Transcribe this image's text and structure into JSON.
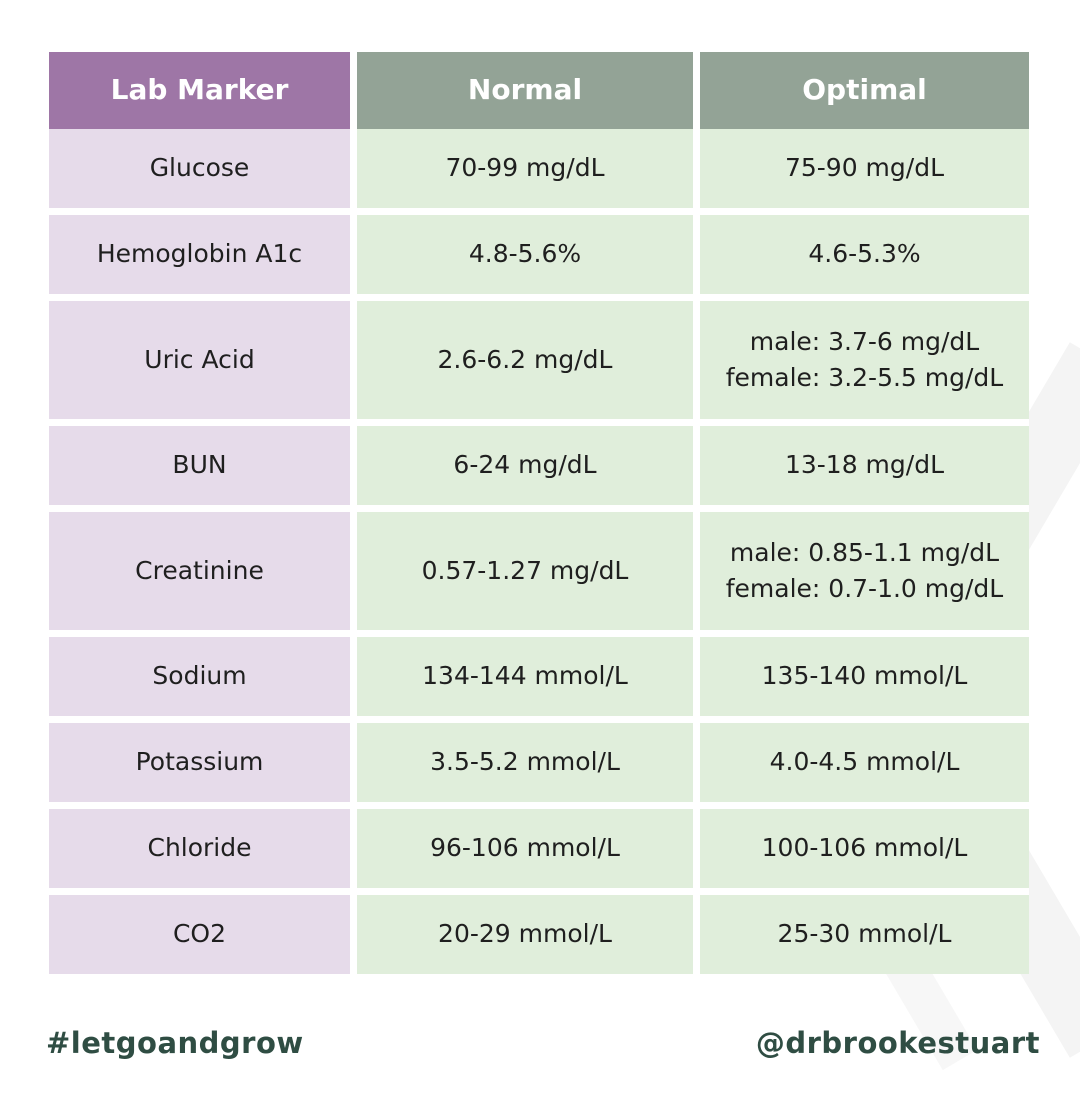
{
  "table": {
    "headers": [
      "Lab Marker",
      "Normal",
      "Optimal"
    ],
    "rows": [
      {
        "marker": "Glucose",
        "normal": "70-99 mg/dL",
        "optimal": [
          "75-90 mg/dL"
        ]
      },
      {
        "marker": "Hemoglobin A1c",
        "normal": "4.8-5.6%",
        "optimal": [
          "4.6-5.3%"
        ]
      },
      {
        "marker": "Uric Acid",
        "normal": "2.6-6.2 mg/dL",
        "optimal": [
          "male: 3.7-6 mg/dL",
          "female: 3.2-5.5 mg/dL"
        ]
      },
      {
        "marker": "BUN",
        "normal": "6-24 mg/dL",
        "optimal": [
          "13-18 mg/dL"
        ]
      },
      {
        "marker": "Creatinine",
        "normal": "0.57-1.27 mg/dL",
        "optimal": [
          "male: 0.85-1.1 mg/dL",
          "female: 0.7-1.0 mg/dL"
        ]
      },
      {
        "marker": "Sodium",
        "normal": "134-144 mmol/L",
        "optimal": [
          "135-140 mmol/L"
        ]
      },
      {
        "marker": "Potassium",
        "normal": "3.5-5.2 mmol/L",
        "optimal": [
          "4.0-4.5 mmol/L"
        ]
      },
      {
        "marker": "Chloride",
        "normal": "96-106 mmol/L",
        "optimal": [
          "100-106 mmol/L"
        ]
      },
      {
        "marker": "CO2",
        "normal": "20-29 mmol/L",
        "optimal": [
          "25-30 mmol/L"
        ]
      }
    ]
  },
  "footer": {
    "hashtag": "#letgoandgrow",
    "handle": "@drbrookestuart"
  },
  "colors": {
    "marker_header": "#9e76a6",
    "value_header": "#93a396",
    "marker_cell": "#e6dbea",
    "value_cell": "#e0eedb",
    "footer_text": "#2f4d43"
  }
}
